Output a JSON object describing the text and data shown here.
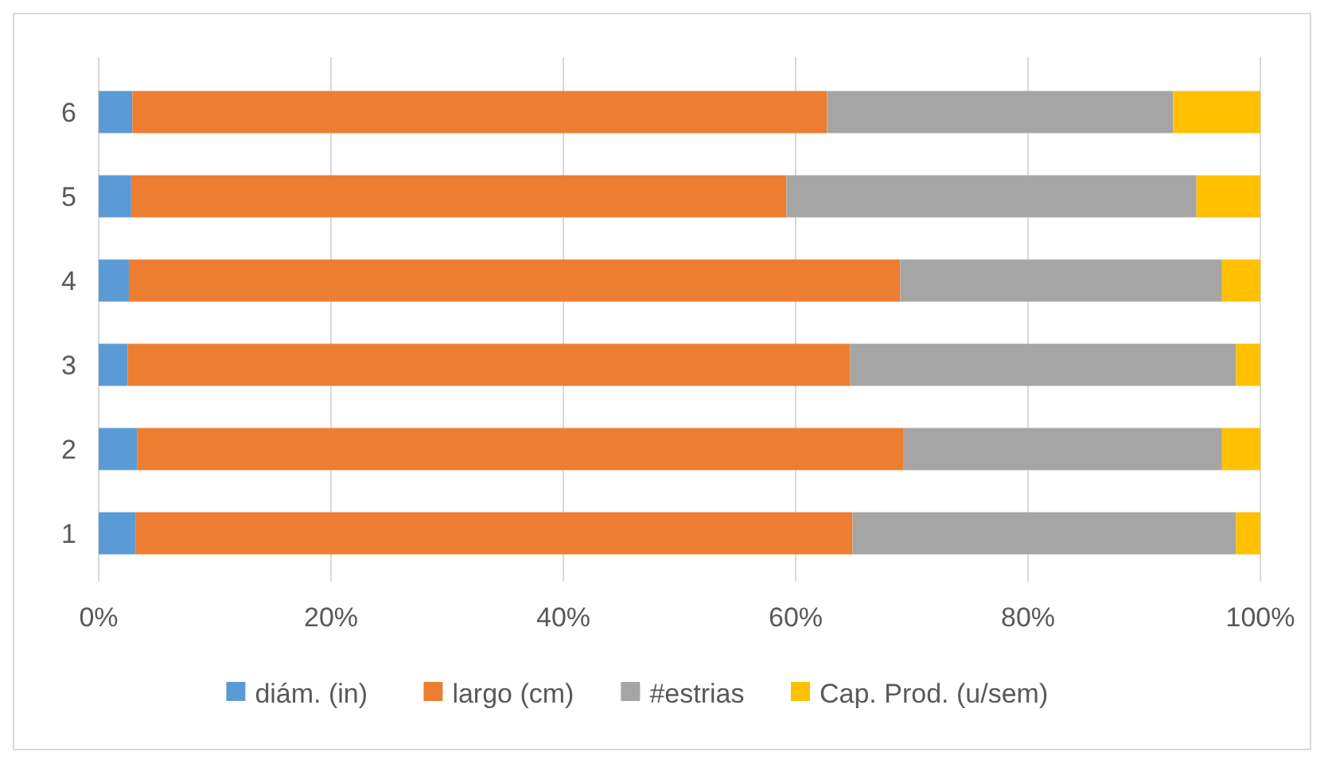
{
  "chart_data": {
    "type": "bar",
    "orientation": "horizontal",
    "stacked": true,
    "categories": [
      "6",
      "5",
      "4",
      "3",
      "2",
      "1"
    ],
    "series": [
      {
        "name": "diám. (in)",
        "color": "#5b9bd5",
        "values": [
          2.9,
          2.8,
          2.6,
          2.5,
          3.3,
          3.2
        ]
      },
      {
        "name": "largo (cm)",
        "color": "#ed7d31",
        "values": [
          59.8,
          56.4,
          66.4,
          62.2,
          66.0,
          61.7
        ]
      },
      {
        "name": "#estrias",
        "color": "#a5a5a5",
        "values": [
          29.8,
          35.3,
          27.7,
          33.2,
          27.4,
          33.0
        ]
      },
      {
        "name": "Cap. Prod. (u/sem)",
        "color": "#ffc000",
        "values": [
          7.5,
          5.5,
          3.3,
          2.1,
          3.3,
          2.1
        ]
      }
    ],
    "xlim": [
      0,
      100
    ],
    "xticks": [
      {
        "value": 0,
        "label": "0%"
      },
      {
        "value": 20,
        "label": "20%"
      },
      {
        "value": 40,
        "label": "40%"
      },
      {
        "value": 60,
        "label": "60%"
      },
      {
        "value": 80,
        "label": "80%"
      },
      {
        "value": 100,
        "label": "100%"
      }
    ],
    "grid": "x",
    "legend": "bottom"
  }
}
